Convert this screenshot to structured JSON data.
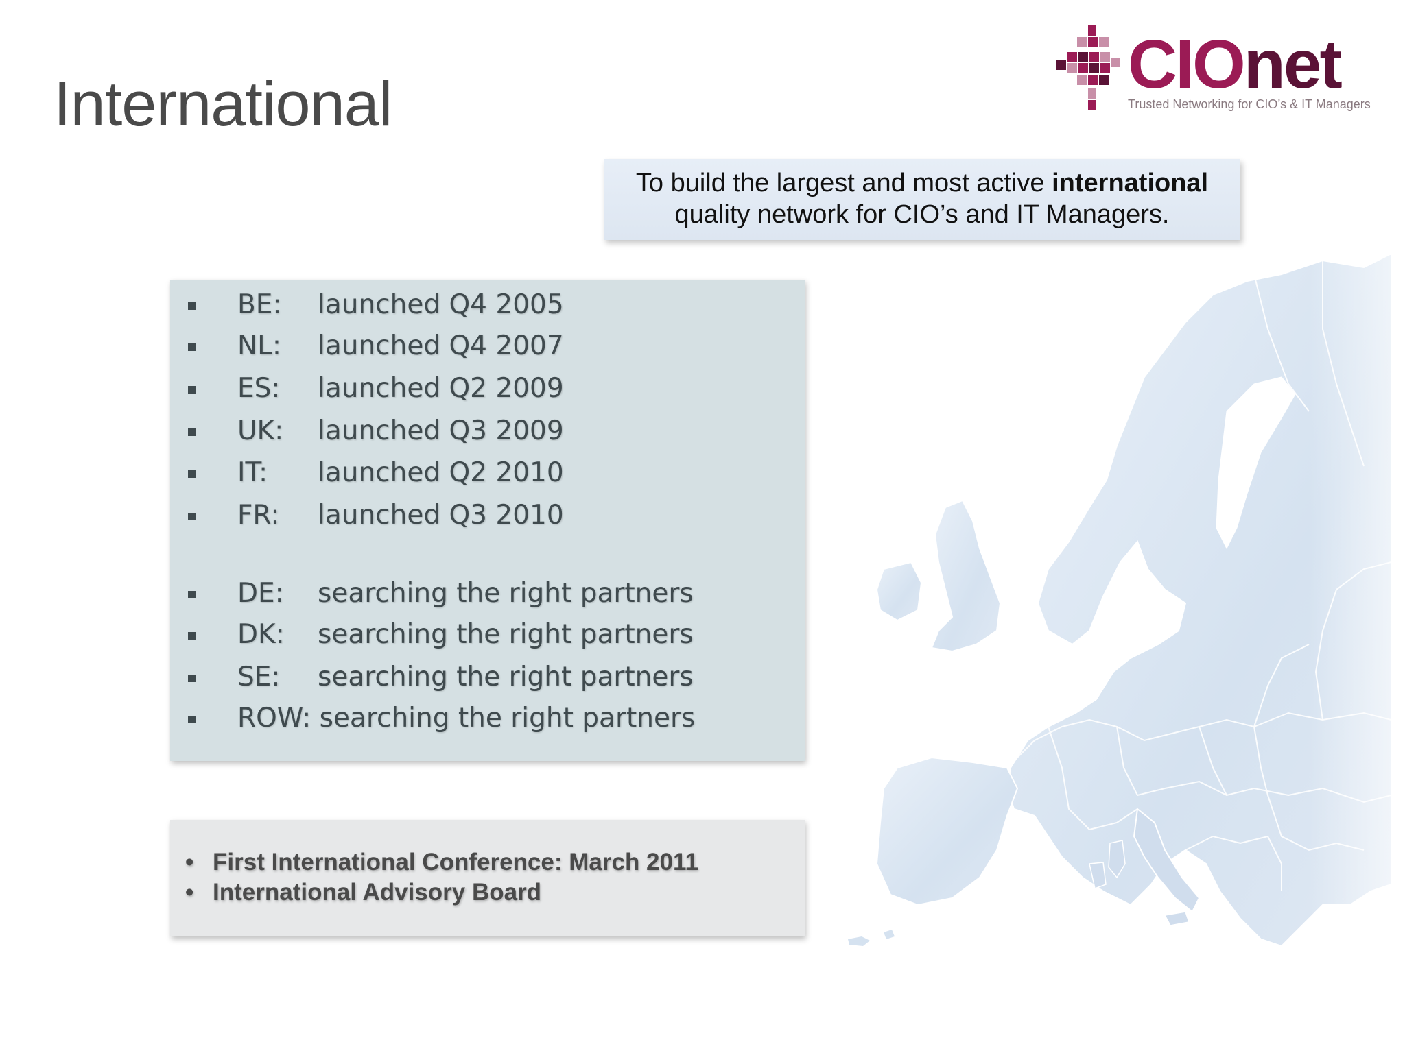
{
  "slide": {
    "title": "International"
  },
  "logo": {
    "wordmark_cio": "CIO",
    "wordmark_net": "net",
    "tagline": "Trusted Networking for CIO’s & IT Managers",
    "colors": {
      "primary": "#9b1b55",
      "dark": "#5a1236",
      "light": "#c88fa8"
    }
  },
  "mission": {
    "text_before": "To build the largest and most active ",
    "text_bold": "international",
    "text_after": "quality network for CIO’s and IT Managers."
  },
  "launches": [
    {
      "code": "BE:",
      "status": "launched Q4 2005"
    },
    {
      "code": "NL:",
      "status": "launched Q4 2007"
    },
    {
      "code": "ES:",
      "status": "launched Q2 2009"
    },
    {
      "code": "UK:",
      "status": "launched Q3 2009"
    },
    {
      "code": "IT:",
      "status": "launched Q2 2010"
    },
    {
      "code": "FR:",
      "status": "launched Q3 2010"
    },
    {
      "code": "DE:",
      "status": "searching the right partners"
    },
    {
      "code": "DK:",
      "status": "searching the right partners"
    },
    {
      "code": "SE:",
      "status": "searching the right partners"
    },
    {
      "full": "ROW: searching the right partners"
    }
  ],
  "events": {
    "bullet": "•",
    "items": [
      "First International Conference: March 2011",
      "International Advisory Board"
    ]
  },
  "colors": {
    "launch_box_bg": "#d5e0e3",
    "events_box_bg": "#e7e8e9",
    "mission_bg": "#e3ebf5",
    "map_fill": "#dbe6f2"
  }
}
